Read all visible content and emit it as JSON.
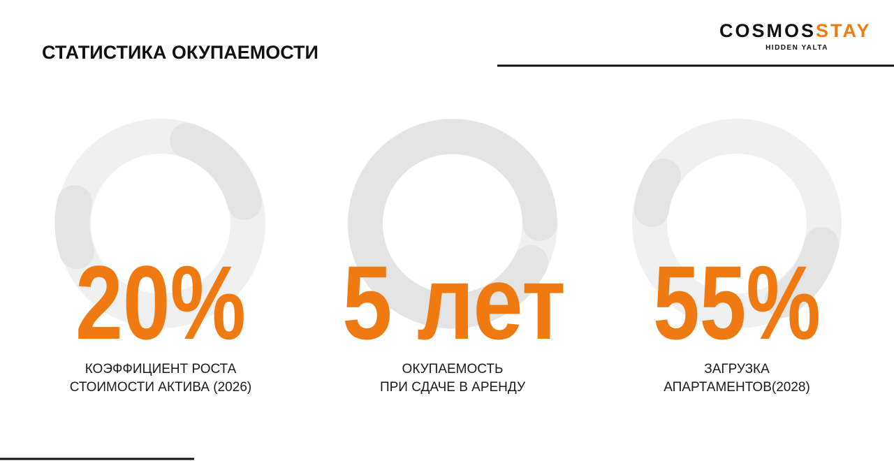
{
  "header": {
    "title": "СТАТИСТИКА ОКУПАЕМОСТИ",
    "logo": {
      "brand": "COSMOS",
      "accent": "STAY",
      "tagline": "HIDDEN YALTA"
    }
  },
  "stats": [
    {
      "value": "20%",
      "label": [
        "КОЭФФИЦИЕНТ РОСТА",
        "СТОИМОСТИ АКТИВА (2026)"
      ]
    },
    {
      "value": "5 лет",
      "label": [
        "ОКУПАЕМОСТЬ",
        "ПРИ СДАЧЕ В АРЕНДУ"
      ]
    },
    {
      "value": "55%",
      "label": [
        "ЗАГРУЗКА",
        "АПАРТАМЕНТОВ(2028)"
      ]
    }
  ]
}
